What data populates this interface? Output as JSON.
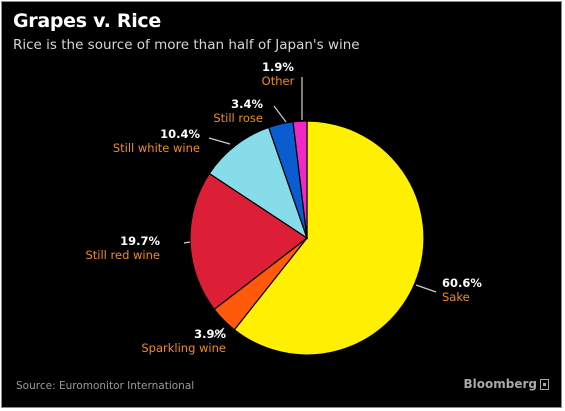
{
  "header": {
    "title": "Grapes v. Rice",
    "subtitle": "Rice is the source of more than half of Japan's wine"
  },
  "footer": {
    "source": "Source: Euromonitor International",
    "brand": "Bloomberg"
  },
  "colors": {
    "background": "#000000",
    "label_text": "#f28c1c",
    "percent_text": "#ffffff"
  },
  "chart_data": {
    "type": "pie",
    "title": "Grapes v. Rice",
    "subtitle": "Rice is the source of more than half of Japan's wine",
    "slices": [
      {
        "label": "Sake",
        "value": 60.6,
        "display": "60.6%",
        "color": "#ffef00"
      },
      {
        "label": "Sparkling wine",
        "value": 3.9,
        "display": "3.9%",
        "color": "#ff5a0a"
      },
      {
        "label": "Still red wine",
        "value": 19.7,
        "display": "19.7%",
        "color": "#dc1e37"
      },
      {
        "label": "Still white wine",
        "value": 10.4,
        "display": "10.4%",
        "color": "#86dde9"
      },
      {
        "label": "Still rose",
        "value": 3.4,
        "display": "3.4%",
        "color": "#0a5cd1"
      },
      {
        "label": "Other",
        "value": 1.9,
        "display": "1.9%",
        "color": "#f028c8"
      }
    ]
  }
}
